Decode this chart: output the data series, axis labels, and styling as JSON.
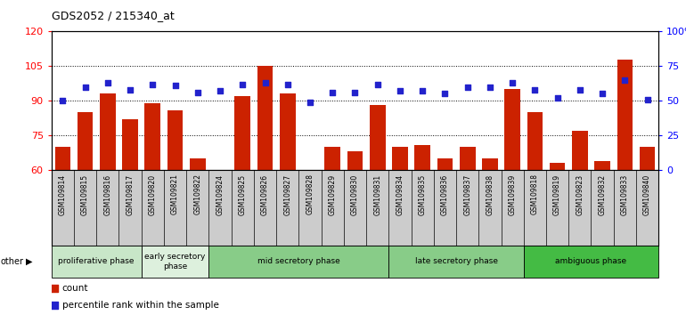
{
  "title": "GDS2052 / 215340_at",
  "samples": [
    "GSM109814",
    "GSM109815",
    "GSM109816",
    "GSM109817",
    "GSM109820",
    "GSM109821",
    "GSM109822",
    "GSM109824",
    "GSM109825",
    "GSM109826",
    "GSM109827",
    "GSM109828",
    "GSM109829",
    "GSM109830",
    "GSM109831",
    "GSM109834",
    "GSM109835",
    "GSM109836",
    "GSM109837",
    "GSM109838",
    "GSM109839",
    "GSM109818",
    "GSM109819",
    "GSM109823",
    "GSM109832",
    "GSM109833",
    "GSM109840"
  ],
  "counts": [
    70,
    85,
    93,
    82,
    89,
    86,
    65,
    60,
    92,
    105,
    93,
    60,
    70,
    68,
    88,
    70,
    71,
    65,
    70,
    65,
    95,
    85,
    63,
    77,
    64,
    108,
    70
  ],
  "percentiles": [
    50,
    60,
    63,
    58,
    62,
    61,
    56,
    57,
    62,
    63,
    62,
    49,
    56,
    56,
    62,
    57,
    57,
    55,
    60,
    60,
    63,
    58,
    52,
    58,
    55,
    65,
    51
  ],
  "phases": [
    {
      "label": "proliferative phase",
      "start": 0,
      "end": 4,
      "color": "#c8e6c8"
    },
    {
      "label": "early secretory\nphase",
      "start": 4,
      "end": 7,
      "color": "#ddf0dd"
    },
    {
      "label": "mid secretory phase",
      "start": 7,
      "end": 15,
      "color": "#88cc88"
    },
    {
      "label": "late secretory phase",
      "start": 15,
      "end": 21,
      "color": "#88cc88"
    },
    {
      "label": "ambiguous phase",
      "start": 21,
      "end": 27,
      "color": "#44bb44"
    }
  ],
  "ylim_left": [
    60,
    120
  ],
  "ylim_right": [
    0,
    100
  ],
  "yticks_left": [
    60,
    75,
    90,
    105,
    120
  ],
  "yticks_right": [
    0,
    25,
    50,
    75,
    100
  ],
  "bar_color": "#cc2200",
  "dot_color": "#2222cc",
  "tick_area_color": "#cccccc"
}
